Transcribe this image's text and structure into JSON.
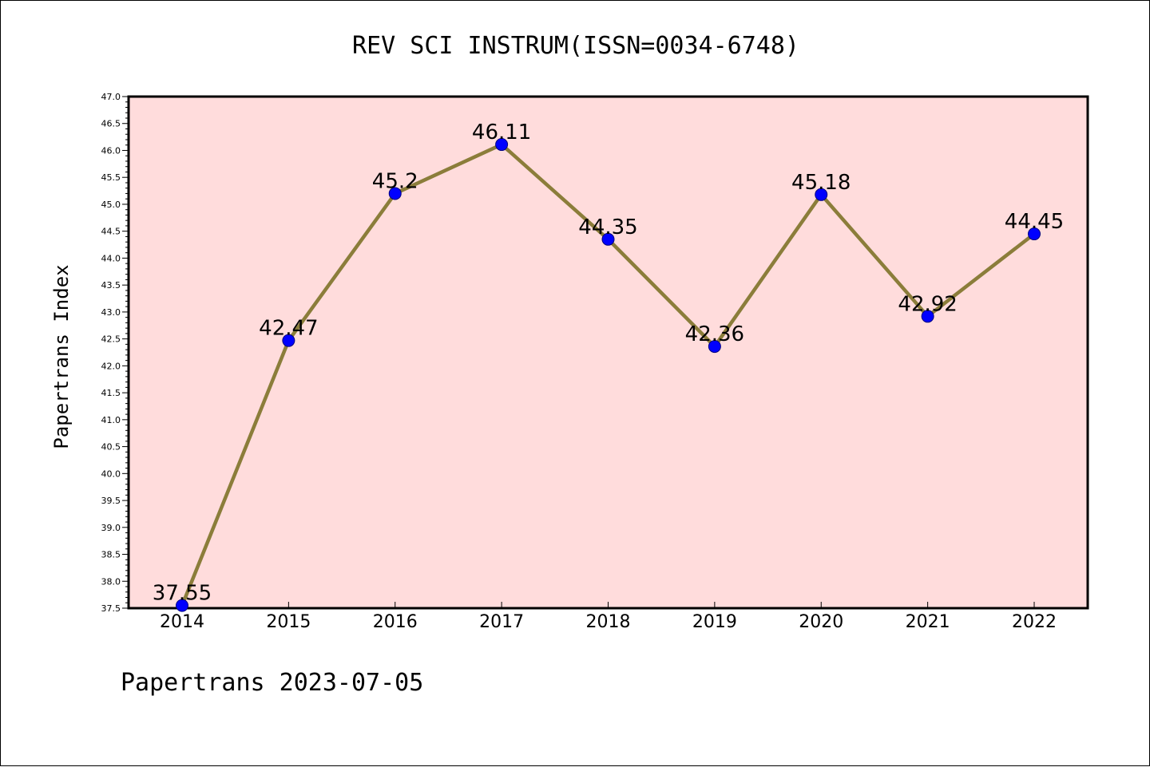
{
  "chart_data": {
    "type": "line",
    "title": "REV SCI INSTRUM(ISSN=0034-6748)",
    "xlabel": "",
    "ylabel": "Papertrans Index",
    "footer": "Papertrans 2023-07-05",
    "categories": [
      "2014",
      "2015",
      "2016",
      "2017",
      "2018",
      "2019",
      "2020",
      "2021",
      "2022"
    ],
    "values": [
      37.55,
      42.47,
      45.2,
      46.11,
      44.35,
      42.36,
      45.18,
      42.92,
      44.45
    ],
    "data_labels": [
      "37.55",
      "42.47",
      "45.2",
      "46.11",
      "44.35",
      "42.36",
      "45.18",
      "42.92",
      "44.45"
    ],
    "ylim": [
      37.5,
      47.0
    ],
    "yticks": [
      "37.5",
      "38.0",
      "38.5",
      "39.0",
      "39.5",
      "40.0",
      "40.5",
      "41.0",
      "41.5",
      "42.0",
      "42.5",
      "43.0",
      "43.5",
      "44.0",
      "44.5",
      "45.0",
      "45.5",
      "46.0",
      "46.5",
      "47.0"
    ],
    "grid": false,
    "colors": {
      "plot_background": "#ffdcdc",
      "line": "#8b7d3a",
      "marker": "#0000ff",
      "marker_edge": "#000080"
    }
  }
}
